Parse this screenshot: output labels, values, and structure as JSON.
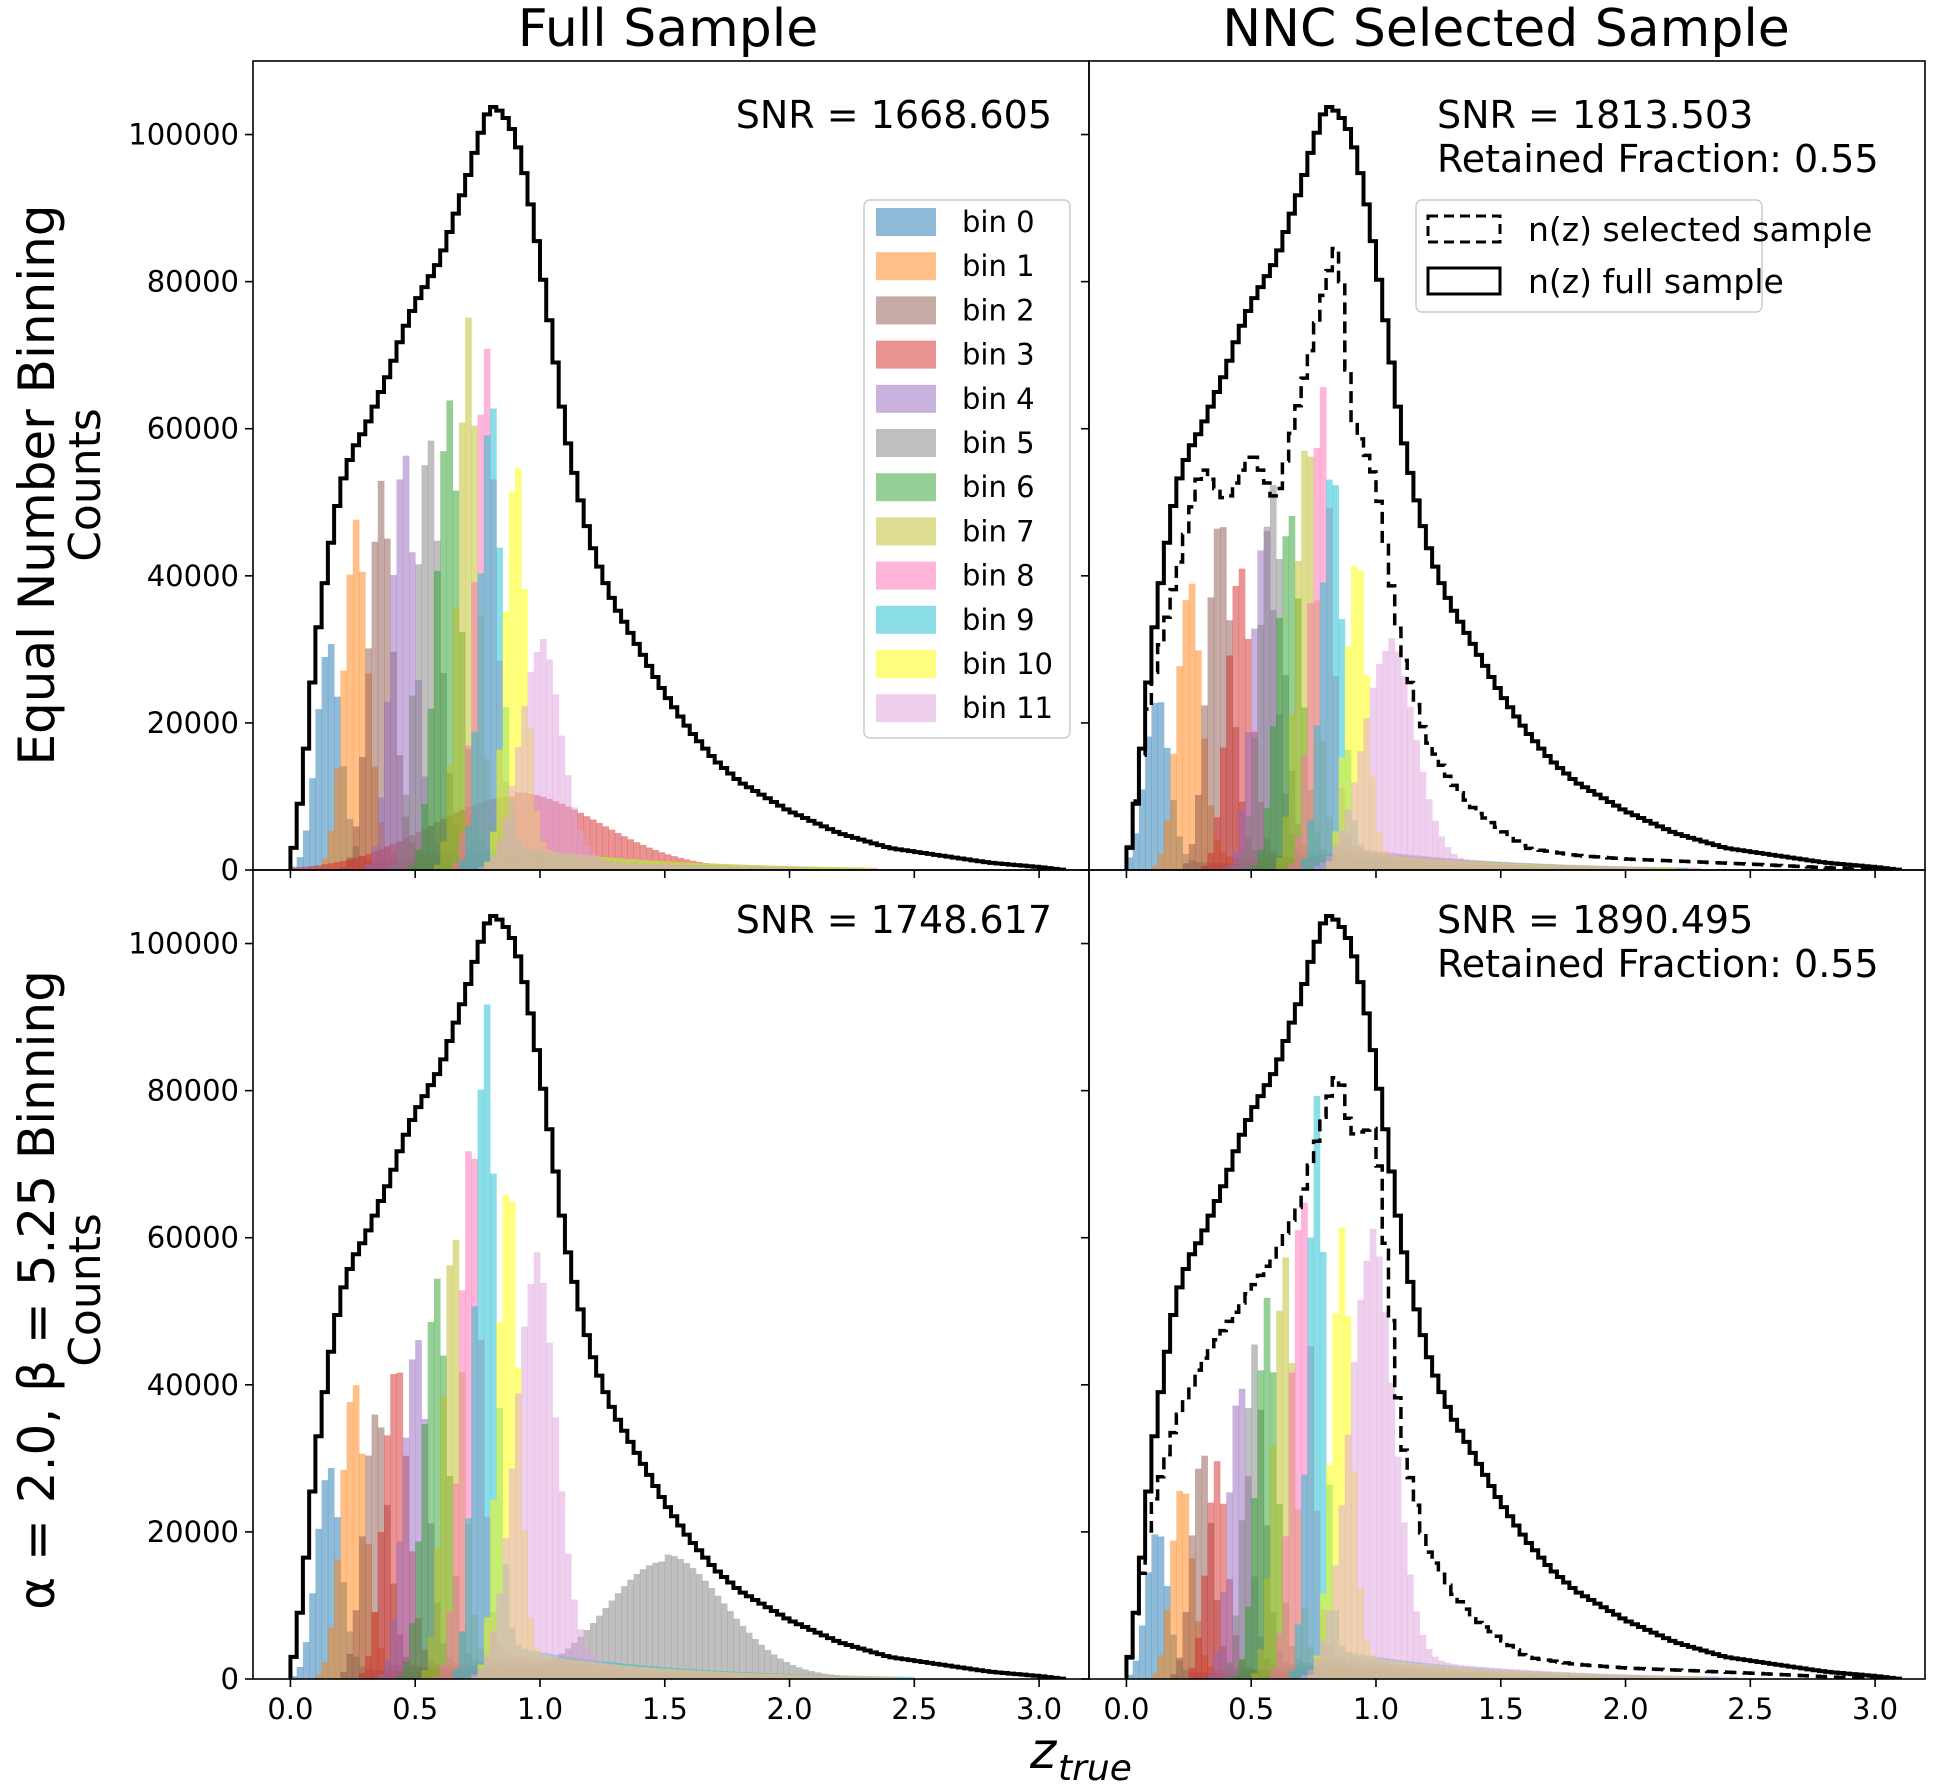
{
  "figure": {
    "col_titles": [
      "Full Sample",
      "NNC Selected Sample"
    ],
    "row_labels": [
      "Equal Number Binning",
      "α = 2.0, β = 5.25 Binning"
    ],
    "ylabel": "Counts",
    "xlabel_main": "z",
    "xlabel_sub": "true"
  },
  "legend_bins": {
    "labels": [
      "bin 0",
      "bin 1",
      "bin 2",
      "bin 3",
      "bin 4",
      "bin 5",
      "bin 6",
      "bin 7",
      "bin 8",
      "bin 9",
      "bin 10",
      "bin 11"
    ],
    "colors": [
      "#1f77b4",
      "#ff7f0e",
      "#8c564b",
      "#d62728",
      "#9467bd",
      "#7f7f7f",
      "#2ca02c",
      "#bcbd22",
      "#ff69b4",
      "#17becf",
      "#ffff00",
      "#dda0dd"
    ]
  },
  "legend_nz": {
    "selected_label": "n(z) selected sample",
    "full_label": "n(z) full sample"
  },
  "annotations": {
    "tl": "SNR = 1668.605",
    "tr_snr": "SNR = 1813.503",
    "tr_frac": "Retained Fraction: 0.55",
    "bl": "SNR = 1748.617",
    "br_snr": "SNR = 1890.495",
    "br_frac": "Retained Fraction: 0.55"
  },
  "chart_data": {
    "type": "histogram",
    "title": "",
    "xlabel": "z_true",
    "ylabel": "Counts",
    "xlim": [
      -0.15,
      3.2
    ],
    "ylim": [
      0,
      110000
    ],
    "x_ticks": [
      0.0,
      0.5,
      1.0,
      1.5,
      2.0,
      2.5,
      3.0
    ],
    "x_tick_labels": [
      "0.0",
      "0.5",
      "1.0",
      "1.5",
      "2.0",
      "2.5",
      "3.0"
    ],
    "y_ticks": [
      0,
      20000,
      40000,
      60000,
      80000,
      100000
    ],
    "y_tick_labels": [
      "0",
      "20000",
      "40000",
      "60000",
      "80000",
      "100000"
    ],
    "full_nz": {
      "name": "n(z) full sample",
      "x": [
        0.0,
        0.05,
        0.1,
        0.15,
        0.2,
        0.25,
        0.3,
        0.35,
        0.4,
        0.45,
        0.5,
        0.55,
        0.6,
        0.65,
        0.7,
        0.75,
        0.8,
        0.85,
        0.9,
        0.95,
        1.0,
        1.05,
        1.1,
        1.15,
        1.2,
        1.25,
        1.3,
        1.4,
        1.5,
        1.6,
        1.7,
        1.8,
        1.9,
        2.0,
        2.2,
        2.4,
        2.6,
        2.8,
        3.0,
        3.1
      ],
      "values": [
        0,
        12000,
        30000,
        42000,
        52000,
        57000,
        60000,
        64000,
        68000,
        73000,
        77000,
        80000,
        83000,
        88000,
        93000,
        99000,
        104000,
        103000,
        100000,
        93000,
        83000,
        72000,
        60000,
        52000,
        45000,
        40000,
        36000,
        30000,
        24000,
        19000,
        15000,
        12000,
        10000,
        8000,
        5000,
        3000,
        2000,
        1000,
        400,
        0
      ]
    },
    "panels": [
      {
        "position": "top-left",
        "binning": "Equal Number Binning",
        "sample": "Full Sample",
        "snr": 1668.605,
        "bins": [
          {
            "name": "bin 0",
            "peak_z": 0.15,
            "width": 0.07,
            "peak": 30000
          },
          {
            "name": "bin 1",
            "peak_z": 0.26,
            "width": 0.07,
            "peak": 45000
          },
          {
            "name": "bin 2",
            "peak_z": 0.36,
            "width": 0.07,
            "peak": 50000
          },
          {
            "name": "bin 3",
            "peak_z": 0.9,
            "width": 0.5,
            "peak": 10000
          },
          {
            "name": "bin 4",
            "peak_z": 0.45,
            "width": 0.07,
            "peak": 55000
          },
          {
            "name": "bin 5",
            "peak_z": 0.55,
            "width": 0.07,
            "peak": 57000
          },
          {
            "name": "bin 6",
            "peak_z": 0.63,
            "width": 0.07,
            "peak": 61000
          },
          {
            "name": "bin 7",
            "peak_z": 0.71,
            "width": 0.06,
            "peak": 71000
          },
          {
            "name": "bin 8",
            "peak_z": 0.78,
            "width": 0.06,
            "peak": 68000
          },
          {
            "name": "bin 9",
            "peak_z": 0.8,
            "width": 0.06,
            "peak": 62000
          },
          {
            "name": "bin 10",
            "peak_z": 0.9,
            "width": 0.06,
            "peak": 54000
          },
          {
            "name": "bin 11",
            "peak_z": 1.0,
            "width": 0.12,
            "peak": 30000
          }
        ]
      },
      {
        "position": "top-right",
        "binning": "Equal Number Binning",
        "sample": "NNC Selected Sample",
        "snr": 1813.503,
        "retained_fraction": 0.55,
        "selected_nz": {
          "x": [
            0.0,
            0.1,
            0.2,
            0.3,
            0.4,
            0.5,
            0.6,
            0.7,
            0.8,
            0.85,
            0.9,
            1.0,
            1.1,
            1.2,
            1.3,
            1.4,
            1.6,
            1.8,
            2.0,
            2.5,
            3.0
          ],
          "values": [
            0,
            25000,
            40000,
            55000,
            50000,
            57000,
            50000,
            65000,
            80000,
            86000,
            62000,
            53000,
            30000,
            18000,
            12000,
            8000,
            3000,
            2000,
            1500,
            800,
            0
          ]
        },
        "bins": [
          {
            "name": "bin 0",
            "peak_z": 0.12,
            "width": 0.07,
            "peak": 23000
          },
          {
            "name": "bin 1",
            "peak_z": 0.25,
            "width": 0.07,
            "peak": 38000
          },
          {
            "name": "bin 2",
            "peak_z": 0.37,
            "width": 0.07,
            "peak": 47000
          },
          {
            "name": "bin 3",
            "peak_z": 0.45,
            "width": 0.07,
            "peak": 40000
          },
          {
            "name": "bin 4",
            "peak_z": 0.55,
            "width": 0.07,
            "peak": 45000
          },
          {
            "name": "bin 5",
            "peak_z": 0.58,
            "width": 0.07,
            "peak": 50000
          },
          {
            "name": "bin 6",
            "peak_z": 0.65,
            "width": 0.07,
            "peak": 47000
          },
          {
            "name": "bin 7",
            "peak_z": 0.72,
            "width": 0.06,
            "peak": 58000
          },
          {
            "name": "bin 8",
            "peak_z": 0.78,
            "width": 0.06,
            "peak": 63000
          },
          {
            "name": "bin 9",
            "peak_z": 0.82,
            "width": 0.06,
            "peak": 54000
          },
          {
            "name": "bin 10",
            "peak_z": 0.92,
            "width": 0.06,
            "peak": 42000
          },
          {
            "name": "bin 11",
            "peak_z": 1.05,
            "width": 0.15,
            "peak": 30000
          }
        ]
      },
      {
        "position": "bottom-left",
        "binning": "α = 2.0, β = 5.25 Binning",
        "sample": "Full Sample",
        "snr": 1748.617,
        "bins": [
          {
            "name": "bin 0",
            "peak_z": 0.15,
            "width": 0.07,
            "peak": 28000
          },
          {
            "name": "bin 1",
            "peak_z": 0.25,
            "width": 0.07,
            "peak": 39000
          },
          {
            "name": "bin 2",
            "peak_z": 0.34,
            "width": 0.07,
            "peak": 36000
          },
          {
            "name": "bin 3",
            "peak_z": 0.42,
            "width": 0.07,
            "peak": 42000
          },
          {
            "name": "bin 4",
            "peak_z": 0.5,
            "width": 0.07,
            "peak": 45000
          },
          {
            "name": "bin 5",
            "peak_z": 1.5,
            "width": 0.35,
            "peak": 16000
          },
          {
            "name": "bin 6",
            "peak_z": 0.58,
            "width": 0.07,
            "peak": 52000
          },
          {
            "name": "bin 7",
            "peak_z": 0.65,
            "width": 0.06,
            "peak": 59000
          },
          {
            "name": "bin 8",
            "peak_z": 0.72,
            "width": 0.06,
            "peak": 73000
          },
          {
            "name": "bin 9",
            "peak_z": 0.78,
            "width": 0.06,
            "peak": 88000
          },
          {
            "name": "bin 10",
            "peak_z": 0.87,
            "width": 0.06,
            "peak": 67000
          },
          {
            "name": "bin 11",
            "peak_z": 0.98,
            "width": 0.12,
            "peak": 55000
          }
        ]
      },
      {
        "position": "bottom-right",
        "binning": "α = 2.0, β = 5.25 Binning",
        "sample": "NNC Selected Sample",
        "snr": 1890.495,
        "retained_fraction": 0.55,
        "selected_nz": {
          "x": [
            0.0,
            0.1,
            0.2,
            0.3,
            0.4,
            0.5,
            0.6,
            0.7,
            0.8,
            0.85,
            0.9,
            1.0,
            1.1,
            1.2,
            1.3,
            1.4,
            1.6,
            1.8,
            2.0,
            2.5,
            3.0
          ],
          "values": [
            0,
            23000,
            35000,
            43000,
            48000,
            53000,
            58000,
            65000,
            78000,
            83000,
            74000,
            75000,
            33000,
            18000,
            12000,
            8000,
            3000,
            2000,
            1500,
            800,
            0
          ]
        },
        "bins": [
          {
            "name": "bin 0",
            "peak_z": 0.12,
            "width": 0.06,
            "peak": 20000
          },
          {
            "name": "bin 1",
            "peak_z": 0.22,
            "width": 0.06,
            "peak": 26000
          },
          {
            "name": "bin 2",
            "peak_z": 0.3,
            "width": 0.06,
            "peak": 30000
          },
          {
            "name": "bin 3",
            "peak_z": 0.36,
            "width": 0.06,
            "peak": 28000
          },
          {
            "name": "bin 4",
            "peak_z": 0.45,
            "width": 0.06,
            "peak": 39000
          },
          {
            "name": "bin 5",
            "peak_z": 0.51,
            "width": 0.06,
            "peak": 43000
          },
          {
            "name": "bin 6",
            "peak_z": 0.56,
            "width": 0.06,
            "peak": 49000
          },
          {
            "name": "bin 7",
            "peak_z": 0.63,
            "width": 0.06,
            "peak": 55000
          },
          {
            "name": "bin 8",
            "peak_z": 0.7,
            "width": 0.06,
            "peak": 64000
          },
          {
            "name": "bin 9",
            "peak_z": 0.76,
            "width": 0.05,
            "peak": 75000
          },
          {
            "name": "bin 10",
            "peak_z": 0.86,
            "width": 0.06,
            "peak": 58000
          },
          {
            "name": "bin 11",
            "peak_z": 0.98,
            "width": 0.13,
            "peak": 58000
          }
        ]
      }
    ]
  }
}
